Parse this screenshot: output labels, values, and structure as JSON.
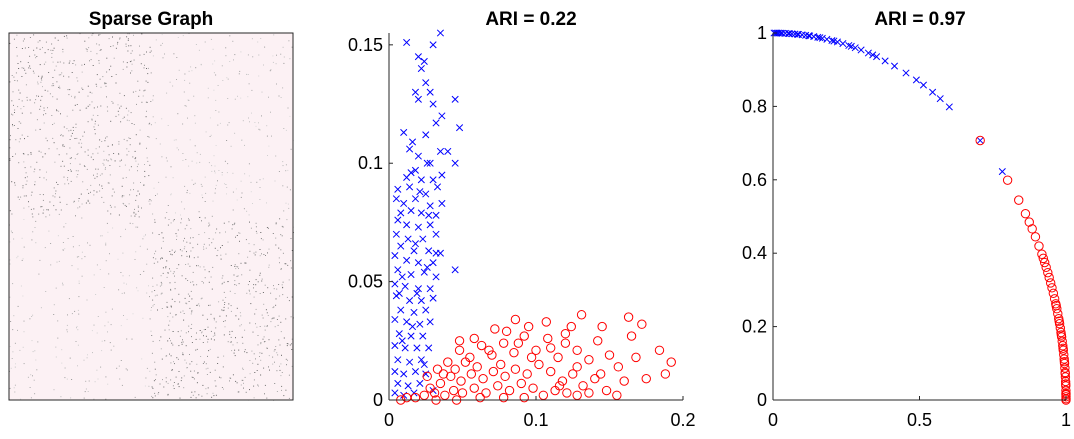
{
  "chart_data": [
    {
      "type": "heatmap",
      "title": "Sparse Graph",
      "xlabel": "",
      "ylabel": "",
      "background_color": "#fcf1f4",
      "block_structure": "two communities (2x2 blocks, denser on diagonal)",
      "grid": false
    },
    {
      "type": "scatter",
      "title": "ARI = 0.22",
      "xlabel": "",
      "ylabel": "",
      "xlim": [
        0,
        0.2
      ],
      "ylim": [
        0,
        0.155
      ],
      "xticks": [
        "0",
        "0.1",
        "0.2"
      ],
      "yticks": [
        "0",
        "0.05",
        "0.1",
        "0.15"
      ],
      "grid": false,
      "series": [
        {
          "marker": "x",
          "color": "#0000ff",
          "points": [
            [
              0.012,
              0.151
            ],
            [
              0.02,
              0.145
            ],
            [
              0.022,
              0.14
            ],
            [
              0.024,
              0.143
            ],
            [
              0.025,
              0.134
            ],
            [
              0.03,
              0.15
            ],
            [
              0.035,
              0.155
            ],
            [
              0.018,
              0.13
            ],
            [
              0.02,
              0.127
            ],
            [
              0.028,
              0.13
            ],
            [
              0.03,
              0.125
            ],
            [
              0.036,
              0.12
            ],
            [
              0.045,
              0.127
            ],
            [
              0.048,
              0.115
            ],
            [
              0.032,
              0.117
            ],
            [
              0.025,
              0.112
            ],
            [
              0.016,
              0.109
            ],
            [
              0.01,
              0.113
            ],
            [
              0.014,
              0.106
            ],
            [
              0.02,
              0.103
            ],
            [
              0.026,
              0.1
            ],
            [
              0.035,
              0.105
            ],
            [
              0.04,
              0.105
            ],
            [
              0.028,
              0.1
            ],
            [
              0.018,
              0.097
            ],
            [
              0.012,
              0.094
            ],
            [
              0.022,
              0.093
            ],
            [
              0.03,
              0.093
            ],
            [
              0.036,
              0.095
            ],
            [
              0.045,
              0.1
            ],
            [
              0.006,
              0.089
            ],
            [
              0.014,
              0.09
            ],
            [
              0.025,
              0.087
            ],
            [
              0.033,
              0.09
            ],
            [
              0.005,
              0.085
            ],
            [
              0.01,
              0.083
            ],
            [
              0.018,
              0.085
            ],
            [
              0.028,
              0.082
            ],
            [
              0.036,
              0.083
            ],
            [
              0.015,
              0.08
            ],
            [
              0.022,
              0.079
            ],
            [
              0.032,
              0.078
            ],
            [
              0.006,
              0.076
            ],
            [
              0.012,
              0.074
            ],
            [
              0.02,
              0.073
            ],
            [
              0.028,
              0.074
            ],
            [
              0.005,
              0.07
            ],
            [
              0.013,
              0.068
            ],
            [
              0.023,
              0.068
            ],
            [
              0.032,
              0.07
            ],
            [
              0.008,
              0.065
            ],
            [
              0.017,
              0.063
            ],
            [
              0.027,
              0.063
            ],
            [
              0.035,
              0.062
            ],
            [
              0.004,
              0.061
            ],
            [
              0.012,
              0.059
            ],
            [
              0.02,
              0.058
            ],
            [
              0.03,
              0.058
            ],
            [
              0.045,
              0.055
            ],
            [
              0.006,
              0.055
            ],
            [
              0.015,
              0.053
            ],
            [
              0.024,
              0.054
            ],
            [
              0.032,
              0.052
            ],
            [
              0.004,
              0.049
            ],
            [
              0.011,
              0.048
            ],
            [
              0.02,
              0.047
            ],
            [
              0.028,
              0.047
            ],
            [
              0.005,
              0.044
            ],
            [
              0.014,
              0.042
            ],
            [
              0.022,
              0.042
            ],
            [
              0.03,
              0.043
            ],
            [
              0.008,
              0.038
            ],
            [
              0.017,
              0.037
            ],
            [
              0.025,
              0.038
            ],
            [
              0.004,
              0.034
            ],
            [
              0.012,
              0.033
            ],
            [
              0.021,
              0.032
            ],
            [
              0.028,
              0.033
            ],
            [
              0.007,
              0.028
            ],
            [
              0.015,
              0.027
            ],
            [
              0.023,
              0.027
            ],
            [
              0.004,
              0.023
            ],
            [
              0.011,
              0.022
            ],
            [
              0.019,
              0.022
            ],
            [
              0.027,
              0.022
            ],
            [
              0.006,
              0.017
            ],
            [
              0.014,
              0.016
            ],
            [
              0.022,
              0.017
            ],
            [
              0.004,
              0.012
            ],
            [
              0.01,
              0.011
            ],
            [
              0.018,
              0.012
            ],
            [
              0.025,
              0.011
            ],
            [
              0.006,
              0.007
            ],
            [
              0.013,
              0.006
            ],
            [
              0.021,
              0.007
            ],
            [
              0.004,
              0.003
            ],
            [
              0.01,
              0.002
            ],
            [
              0.017,
              0.003
            ],
            [
              0.03,
              0.004
            ],
            [
              0.007,
              0.045
            ],
            [
              0.019,
              0.045
            ],
            [
              0.009,
              0.025
            ],
            [
              0.016,
              0.031
            ],
            [
              0.026,
              0.056
            ],
            [
              0.009,
              0.052
            ],
            [
              0.018,
              0.066
            ],
            [
              0.027,
              0.078
            ],
            [
              0.008,
              0.079
            ],
            [
              0.021,
              0.088
            ],
            [
              0.015,
              0.096
            ],
            [
              0.032,
              0.062
            ],
            [
              0.024,
              0.015
            ]
          ]
        },
        {
          "marker": "o",
          "color": "#ff0000",
          "points": [
            [
              0.163,
              0.035
            ],
            [
              0.131,
              0.036
            ],
            [
              0.124,
              0.031
            ],
            [
              0.145,
              0.031
            ],
            [
              0.172,
              0.032
            ],
            [
              0.184,
              0.021
            ],
            [
              0.188,
              0.011
            ],
            [
              0.165,
              0.027
            ],
            [
              0.156,
              0.014
            ],
            [
              0.16,
              0.008
            ],
            [
              0.15,
              0.019
            ],
            [
              0.142,
              0.025
            ],
            [
              0.136,
              0.017
            ],
            [
              0.128,
              0.021
            ],
            [
              0.12,
              0.024
            ],
            [
              0.115,
              0.018
            ],
            [
              0.108,
              0.026
            ],
            [
              0.1,
              0.021
            ],
            [
              0.092,
              0.027
            ],
            [
              0.085,
              0.02
            ],
            [
              0.078,
              0.024
            ],
            [
              0.07,
              0.019
            ],
            [
              0.063,
              0.023
            ],
            [
              0.055,
              0.018
            ],
            [
              0.048,
              0.021
            ],
            [
              0.04,
              0.016
            ],
            [
              0.033,
              0.013
            ],
            [
              0.026,
              0.01
            ],
            [
              0.11,
              0.012
            ],
            [
              0.102,
              0.015
            ],
            [
              0.094,
              0.011
            ],
            [
              0.086,
              0.013
            ],
            [
              0.079,
              0.01
            ],
            [
              0.071,
              0.012
            ],
            [
              0.064,
              0.009
            ],
            [
              0.056,
              0.011
            ],
            [
              0.049,
              0.008
            ],
            [
              0.042,
              0.01
            ],
            [
              0.035,
              0.007
            ],
            [
              0.028,
              0.005
            ],
            [
              0.118,
              0.008
            ],
            [
              0.125,
              0.011
            ],
            [
              0.132,
              0.006
            ],
            [
              0.14,
              0.009
            ],
            [
              0.148,
              0.004
            ],
            [
              0.098,
              0.005
            ],
            [
              0.09,
              0.007
            ],
            [
              0.082,
              0.004
            ],
            [
              0.074,
              0.006
            ],
            [
              0.066,
              0.003
            ],
            [
              0.058,
              0.005
            ],
            [
              0.05,
              0.003
            ],
            [
              0.044,
              0.004
            ],
            [
              0.038,
              0.002
            ],
            [
              0.031,
              0.003
            ],
            [
              0.024,
              0.002
            ],
            [
              0.018,
              0.001
            ],
            [
              0.012,
              0.001
            ],
            [
              0.008,
              0.0
            ],
            [
              0.105,
              0.002
            ],
            [
              0.113,
              0.004
            ],
            [
              0.121,
              0.003
            ],
            [
              0.128,
              0.002
            ],
            [
              0.136,
              0.003
            ],
            [
              0.155,
              0.002
            ],
            [
              0.175,
              0.009
            ],
            [
              0.192,
              0.016
            ],
            [
              0.168,
              0.018
            ],
            [
              0.144,
              0.011
            ],
            [
              0.097,
              0.018
            ],
            [
              0.088,
              0.024
            ],
            [
              0.076,
              0.015
            ],
            [
              0.068,
              0.021
            ],
            [
              0.06,
              0.014
            ],
            [
              0.052,
              0.016
            ],
            [
              0.045,
              0.013
            ],
            [
              0.037,
              0.011
            ],
            [
              0.08,
              0.029
            ],
            [
              0.095,
              0.031
            ],
            [
              0.107,
              0.033
            ],
            [
              0.12,
              0.028
            ],
            [
              0.086,
              0.034
            ],
            [
              0.072,
              0.03
            ],
            [
              0.058,
              0.026
            ],
            [
              0.048,
              0.025
            ],
            [
              0.11,
              0.022
            ],
            [
              0.128,
              0.014
            ],
            [
              0.116,
              0.006
            ],
            [
              0.092,
              0.001
            ],
            [
              0.078,
              0.001
            ],
            [
              0.062,
              0.001
            ],
            [
              0.046,
              0.0
            ],
            [
              0.032,
              0.0
            ]
          ]
        }
      ]
    },
    {
      "type": "scatter",
      "title": "ARI = 0.97",
      "xlabel": "",
      "ylabel": "",
      "xlim": [
        0,
        1
      ],
      "ylim": [
        0,
        1
      ],
      "xticks": [
        "0",
        "0.5",
        "1"
      ],
      "yticks": [
        "0",
        "0.2",
        "0.4",
        "0.6",
        "0.8",
        "1"
      ],
      "grid": false,
      "series": [
        {
          "marker": "x",
          "color": "#0000ff",
          "angles_deg": [
            89.5,
            88.9,
            88.2,
            87.6,
            87.0,
            86.3,
            85.7,
            85.0,
            84.3,
            83.6,
            82.8,
            82.0,
            81.2,
            80.3,
            79.4,
            78.4,
            77.3,
            76.2,
            75.0,
            73.7,
            72.5,
            71.0,
            69.3,
            67.5,
            65.5,
            63.0,
            60.7,
            59.1,
            57.0,
            55.2,
            53.0,
            45.0,
            38.5,
            89.8,
            89.2,
            88.5,
            86.8,
            85.2,
            83.0,
            80.8,
            78.0,
            74.5,
            70.1
          ]
        },
        {
          "marker": "o",
          "color": "#ff0000",
          "angles_deg": [
            45.0,
            36.8,
            33.0,
            30.5,
            29.0,
            27.8,
            26.4,
            24.8,
            23.4,
            22.7,
            22.0,
            21.2,
            20.3,
            19.5,
            18.6,
            17.8,
            16.9,
            16.0,
            15.2,
            14.4,
            13.6,
            12.8,
            12.0,
            11.3,
            10.6,
            9.9,
            9.2,
            8.5,
            7.8,
            7.1,
            6.4,
            5.7,
            5.0,
            4.3,
            3.6,
            2.9,
            2.2,
            1.5,
            0.8,
            0.2,
            0.0,
            14.9,
            12.4,
            10.2,
            8.1,
            6.0,
            4.1,
            2.5,
            1.0,
            0.5
          ]
        }
      ]
    }
  ]
}
